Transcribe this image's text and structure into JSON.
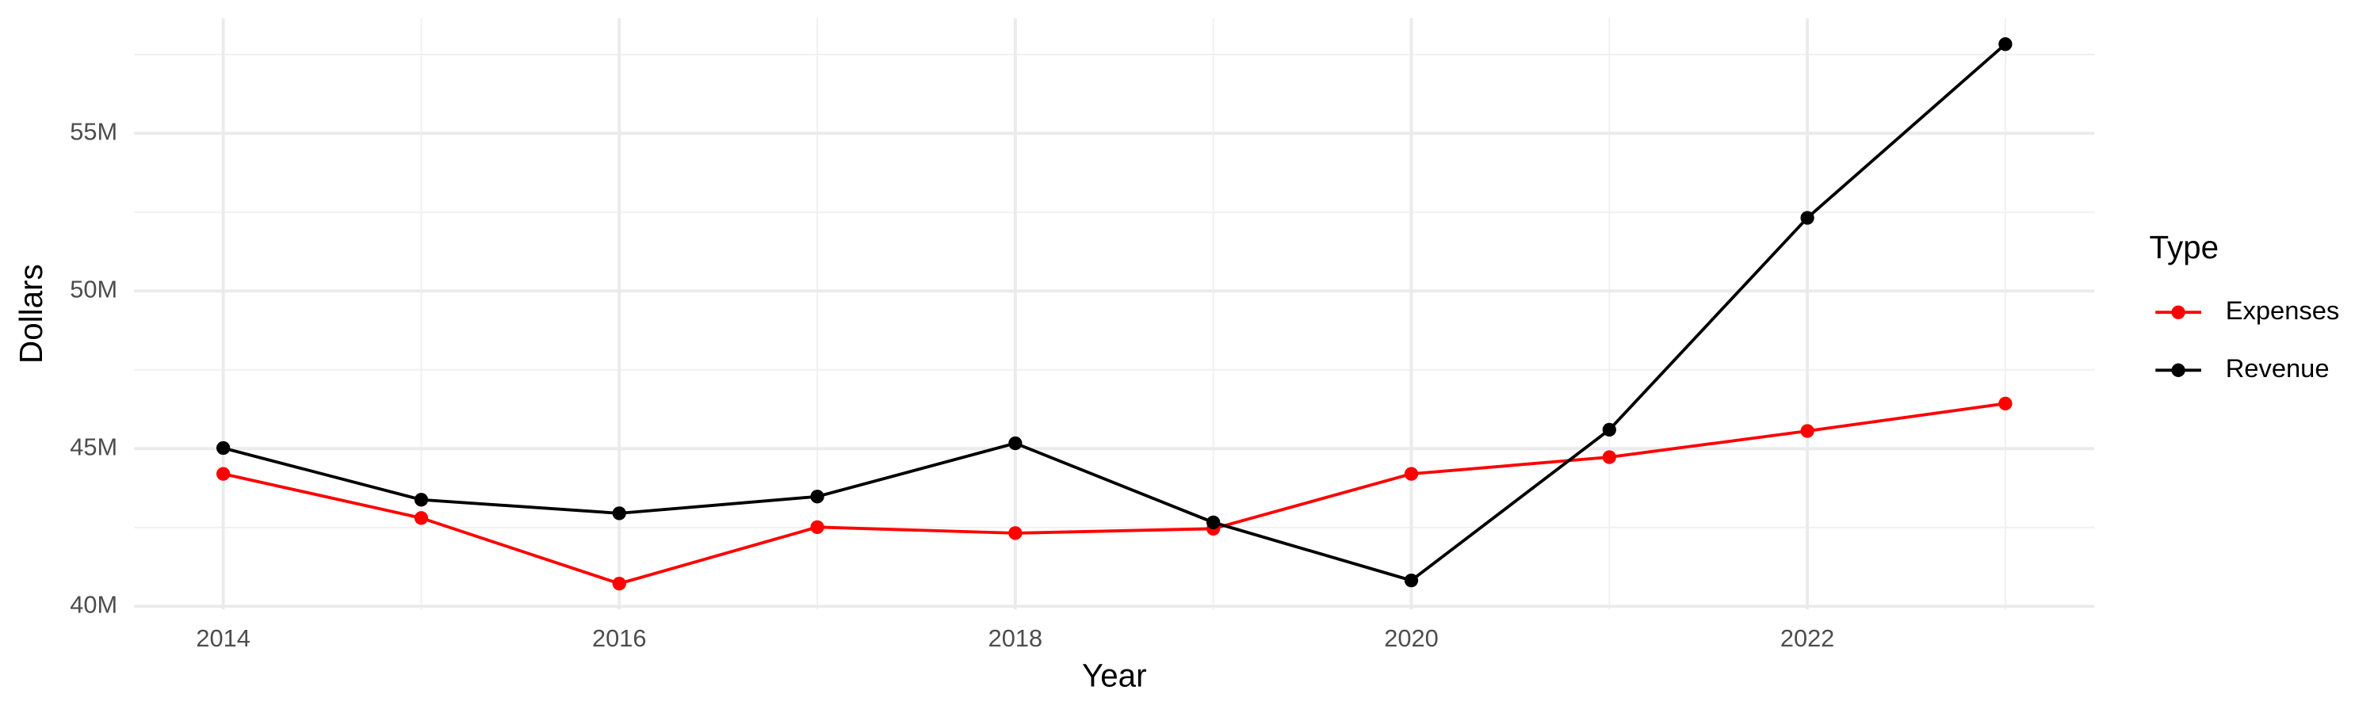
{
  "chart_data": {
    "type": "line",
    "x_label": "Year",
    "y_label": "Dollars",
    "legend_title": "Type",
    "legend_position": "right",
    "x": [
      2014,
      2015,
      2016,
      2017,
      2018,
      2019,
      2020,
      2021,
      2022,
      2023
    ],
    "series": [
      {
        "name": "Expenses",
        "color": "#ff0000",
        "values": [
          44200000,
          42800000,
          40720000,
          42510000,
          42320000,
          42460000,
          44200000,
          44730000,
          45560000,
          46430000
        ]
      },
      {
        "name": "Revenue",
        "color": "#000000",
        "values": [
          45020000,
          43380000,
          42950000,
          43480000,
          45170000,
          42660000,
          40820000,
          45600000,
          52320000,
          57830000
        ]
      }
    ],
    "xlim": [
      2013.55,
      2023.45
    ],
    "xticks": [
      2014,
      2016,
      2018,
      2020,
      2022
    ],
    "xminor": [
      2015,
      2017,
      2019,
      2021,
      2023
    ],
    "ylim": [
      39900000,
      58650000
    ],
    "yticks": [
      {
        "value": 40000000,
        "label": "40M"
      },
      {
        "value": 45000000,
        "label": "45M"
      },
      {
        "value": 50000000,
        "label": "50M"
      },
      {
        "value": 55000000,
        "label": "55M"
      }
    ],
    "yminor": [
      42500000,
      47500000,
      52500000,
      57500000
    ],
    "grid": true
  }
}
